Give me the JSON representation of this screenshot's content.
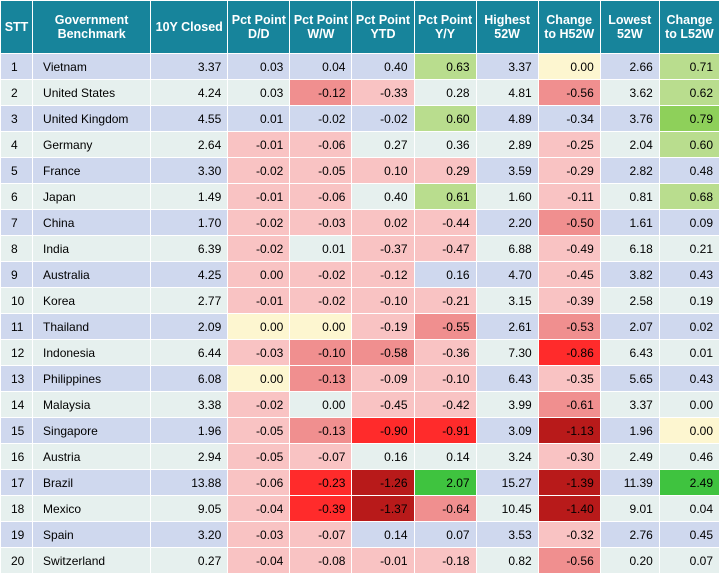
{
  "headers": [
    "STT",
    "Government Benchmark",
    "10Y Closed",
    "Pct Point D/D",
    "Pct Point W/W",
    "Pct Point YTD",
    "Pct Point Y/Y",
    "Highest 52W",
    "Change to H52W",
    "Lowest 52W",
    "Change to L52W"
  ],
  "colors": {
    "header_bg": "#17849b",
    "row_odd": "#cfd8ee",
    "row_even": "#e6f0ee",
    "neutral": "#fdf6d0",
    "neg_1": "#f9c3c3",
    "neg_2": "#f08f8f",
    "neg_3": "#ff2b2b",
    "neg_4": "#b81a1a",
    "pos_1": "#d9ebc0",
    "pos_2": "#b9dd8e",
    "pos_3": "#8ed05a",
    "pos_4": "#3fc33f"
  },
  "rows": [
    {
      "stt": "1",
      "name": "Vietnam",
      "closed": "3.37",
      "dd": "0.03",
      "ww": "0.04",
      "ytd": "0.40",
      "yy": "0.63",
      "h52": "3.37",
      "ch": "0.00",
      "l52": "2.66",
      "cl": "0.71",
      "c": {
        "dd": "",
        "ww": "",
        "ytd": "",
        "yy": "pos_2",
        "ch": "neutral",
        "cl": "pos_2"
      }
    },
    {
      "stt": "2",
      "name": "United States",
      "closed": "4.24",
      "dd": "0.03",
      "ww": "-0.12",
      "ytd": "-0.33",
      "yy": "0.28",
      "h52": "4.81",
      "ch": "-0.56",
      "l52": "3.62",
      "cl": "0.62",
      "c": {
        "dd": "",
        "ww": "neg_2",
        "ytd": "neg_1",
        "yy": "",
        "ch": "neg_2",
        "cl": "pos_2"
      }
    },
    {
      "stt": "3",
      "name": "United Kingdom",
      "closed": "4.55",
      "dd": "0.01",
      "ww": "-0.02",
      "ytd": "-0.02",
      "yy": "0.60",
      "h52": "4.89",
      "ch": "-0.34",
      "l52": "3.76",
      "cl": "0.79",
      "c": {
        "dd": "",
        "ww": "",
        "ytd": "",
        "yy": "pos_2",
        "ch": "",
        "cl": "pos_3"
      }
    },
    {
      "stt": "4",
      "name": "Germany",
      "closed": "2.64",
      "dd": "-0.01",
      "ww": "-0.06",
      "ytd": "0.27",
      "yy": "0.36",
      "h52": "2.89",
      "ch": "-0.25",
      "l52": "2.04",
      "cl": "0.60",
      "c": {
        "dd": "neg_1",
        "ww": "neg_1",
        "ytd": "",
        "yy": "",
        "ch": "neg_1",
        "cl": "pos_2"
      }
    },
    {
      "stt": "5",
      "name": "France",
      "closed": "3.30",
      "dd": "-0.02",
      "ww": "-0.05",
      "ytd": "0.10",
      "yy": "0.29",
      "h52": "3.59",
      "ch": "-0.29",
      "l52": "2.82",
      "cl": "0.48",
      "c": {
        "dd": "neg_1",
        "ww": "neg_1",
        "ytd": "neg_1",
        "yy": "neg_1",
        "ch": "neg_1",
        "cl": ""
      }
    },
    {
      "stt": "6",
      "name": "Japan",
      "closed": "1.49",
      "dd": "-0.01",
      "ww": "-0.06",
      "ytd": "0.40",
      "yy": "0.61",
      "h52": "1.60",
      "ch": "-0.11",
      "l52": "0.81",
      "cl": "0.68",
      "c": {
        "dd": "neg_1",
        "ww": "neg_1",
        "ytd": "",
        "yy": "pos_2",
        "ch": "neg_1",
        "cl": "pos_2"
      }
    },
    {
      "stt": "7",
      "name": "China",
      "closed": "1.70",
      "dd": "-0.02",
      "ww": "-0.03",
      "ytd": "0.02",
      "yy": "-0.44",
      "h52": "2.20",
      "ch": "-0.50",
      "l52": "1.61",
      "cl": "0.09",
      "c": {
        "dd": "neg_1",
        "ww": "neg_1",
        "ytd": "neg_1",
        "yy": "neg_1",
        "ch": "neg_2",
        "cl": ""
      }
    },
    {
      "stt": "8",
      "name": "India",
      "closed": "6.39",
      "dd": "-0.02",
      "ww": "0.01",
      "ytd": "-0.37",
      "yy": "-0.47",
      "h52": "6.88",
      "ch": "-0.49",
      "l52": "6.18",
      "cl": "0.21",
      "c": {
        "dd": "neg_1",
        "ww": "",
        "ytd": "neg_1",
        "yy": "neg_1",
        "ch": "neg_1",
        "cl": ""
      }
    },
    {
      "stt": "9",
      "name": "Australia",
      "closed": "4.25",
      "dd": "0.00",
      "ww": "-0.02",
      "ytd": "-0.12",
      "yy": "0.16",
      "h52": "4.70",
      "ch": "-0.45",
      "l52": "3.82",
      "cl": "0.43",
      "c": {
        "dd": "neg_1",
        "ww": "neg_1",
        "ytd": "neg_1",
        "yy": "",
        "ch": "neg_1",
        "cl": ""
      }
    },
    {
      "stt": "10",
      "name": "Korea",
      "closed": "2.77",
      "dd": "-0.01",
      "ww": "-0.02",
      "ytd": "-0.10",
      "yy": "-0.21",
      "h52": "3.15",
      "ch": "-0.39",
      "l52": "2.58",
      "cl": "0.19",
      "c": {
        "dd": "neg_1",
        "ww": "neg_1",
        "ytd": "neg_1",
        "yy": "neg_1",
        "ch": "neg_1",
        "cl": ""
      }
    },
    {
      "stt": "11",
      "name": "Thailand",
      "closed": "2.09",
      "dd": "0.00",
      "ww": "0.00",
      "ytd": "-0.19",
      "yy": "-0.55",
      "h52": "2.61",
      "ch": "-0.53",
      "l52": "2.07",
      "cl": "0.02",
      "c": {
        "dd": "neutral",
        "ww": "neutral",
        "ytd": "neg_1",
        "yy": "neg_2",
        "ch": "neg_2",
        "cl": ""
      }
    },
    {
      "stt": "12",
      "name": "Indonesia",
      "closed": "6.44",
      "dd": "-0.03",
      "ww": "-0.10",
      "ytd": "-0.58",
      "yy": "-0.36",
      "h52": "7.30",
      "ch": "-0.86",
      "l52": "6.43",
      "cl": "0.01",
      "c": {
        "dd": "neg_1",
        "ww": "neg_2",
        "ytd": "neg_2",
        "yy": "neg_1",
        "ch": "neg_3",
        "cl": ""
      }
    },
    {
      "stt": "13",
      "name": "Philippines",
      "closed": "6.08",
      "dd": "0.00",
      "ww": "-0.13",
      "ytd": "-0.09",
      "yy": "-0.10",
      "h52": "6.43",
      "ch": "-0.35",
      "l52": "5.65",
      "cl": "0.43",
      "c": {
        "dd": "neutral",
        "ww": "neg_2",
        "ytd": "neg_1",
        "yy": "neg_1",
        "ch": "neg_1",
        "cl": ""
      }
    },
    {
      "stt": "14",
      "name": "Malaysia",
      "closed": "3.38",
      "dd": "-0.02",
      "ww": "0.00",
      "ytd": "-0.45",
      "yy": "-0.42",
      "h52": "3.99",
      "ch": "-0.61",
      "l52": "3.37",
      "cl": "0.00",
      "c": {
        "dd": "neg_1",
        "ww": "",
        "ytd": "neg_1",
        "yy": "neg_1",
        "ch": "neg_2",
        "cl": ""
      }
    },
    {
      "stt": "15",
      "name": "Singapore",
      "closed": "1.96",
      "dd": "-0.05",
      "ww": "-0.13",
      "ytd": "-0.90",
      "yy": "-0.91",
      "h52": "3.09",
      "ch": "-1.13",
      "l52": "1.96",
      "cl": "0.00",
      "c": {
        "dd": "neg_1",
        "ww": "neg_2",
        "ytd": "neg_3",
        "yy": "neg_3",
        "ch": "neg_4",
        "cl": "neutral"
      }
    },
    {
      "stt": "16",
      "name": "Austria",
      "closed": "2.94",
      "dd": "-0.05",
      "ww": "-0.07",
      "ytd": "0.16",
      "yy": "0.14",
      "h52": "3.24",
      "ch": "-0.30",
      "l52": "2.49",
      "cl": "0.46",
      "c": {
        "dd": "neg_1",
        "ww": "neg_1",
        "ytd": "",
        "yy": "",
        "ch": "neg_1",
        "cl": ""
      }
    },
    {
      "stt": "17",
      "name": "Brazil",
      "closed": "13.88",
      "dd": "-0.06",
      "ww": "-0.23",
      "ytd": "-1.26",
      "yy": "2.07",
      "h52": "15.27",
      "ch": "-1.39",
      "l52": "11.39",
      "cl": "2.49",
      "c": {
        "dd": "neg_1",
        "ww": "neg_3",
        "ytd": "neg_4",
        "yy": "pos_4",
        "ch": "neg_4",
        "cl": "pos_4"
      }
    },
    {
      "stt": "18",
      "name": "Mexico",
      "closed": "9.05",
      "dd": "-0.04",
      "ww": "-0.39",
      "ytd": "-1.37",
      "yy": "-0.64",
      "h52": "10.45",
      "ch": "-1.40",
      "l52": "9.01",
      "cl": "0.04",
      "c": {
        "dd": "neg_1",
        "ww": "neg_3",
        "ytd": "neg_4",
        "yy": "neg_2",
        "ch": "neg_4",
        "cl": ""
      }
    },
    {
      "stt": "19",
      "name": "Spain",
      "closed": "3.20",
      "dd": "-0.03",
      "ww": "-0.07",
      "ytd": "0.14",
      "yy": "0.07",
      "h52": "3.53",
      "ch": "-0.32",
      "l52": "2.76",
      "cl": "0.45",
      "c": {
        "dd": "neg_1",
        "ww": "neg_1",
        "ytd": "",
        "yy": "",
        "ch": "neg_1",
        "cl": ""
      }
    },
    {
      "stt": "20",
      "name": "Switzerland",
      "closed": "0.27",
      "dd": "-0.04",
      "ww": "-0.08",
      "ytd": "-0.01",
      "yy": "-0.18",
      "h52": "0.82",
      "ch": "-0.56",
      "l52": "0.20",
      "cl": "0.07",
      "c": {
        "dd": "neg_1",
        "ww": "neg_1",
        "ytd": "neg_1",
        "yy": "neg_1",
        "ch": "neg_2",
        "cl": ""
      }
    }
  ]
}
